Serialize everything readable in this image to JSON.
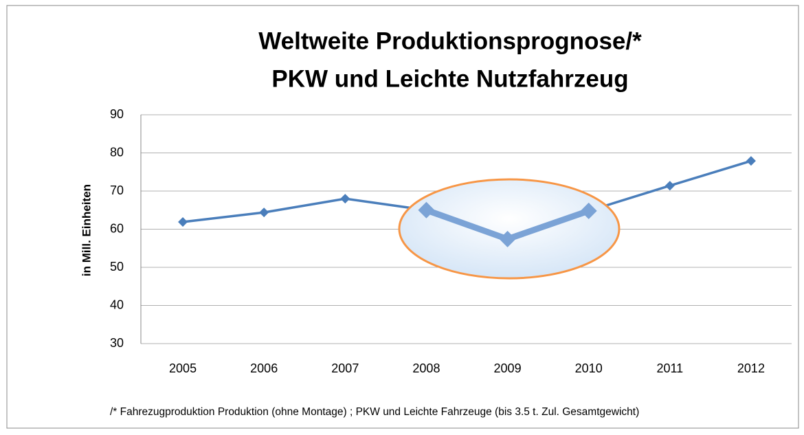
{
  "chart_data": {
    "type": "line",
    "title": [
      "Weltweite Produktionsprognose/*",
      "PKW und Leichte Nutzfahrzeug"
    ],
    "ylabel": "in Mill. Einheiten",
    "footnote": "/* Fahrezugproduktion Produktion (ohne Montage) ; PKW und Leichte Fahrzeuge (bis 3.5 t. Zul. Gesamtgewicht)",
    "categories": [
      "2005",
      "2006",
      "2007",
      "2008",
      "2009",
      "2010",
      "2011",
      "2012"
    ],
    "series": [
      {
        "name": "Produktion",
        "color": "#4a7ebb",
        "values": [
          61.9,
          64.4,
          68.0,
          65.0,
          57.4,
          64.8,
          71.4,
          77.9
        ]
      }
    ],
    "highlight_range": [
      "2008",
      "2010"
    ],
    "highlight_color": "#7ba3d6",
    "ylim": [
      30,
      90
    ],
    "yticks": [
      30,
      40,
      50,
      60,
      70,
      80,
      90
    ],
    "grid": true
  }
}
